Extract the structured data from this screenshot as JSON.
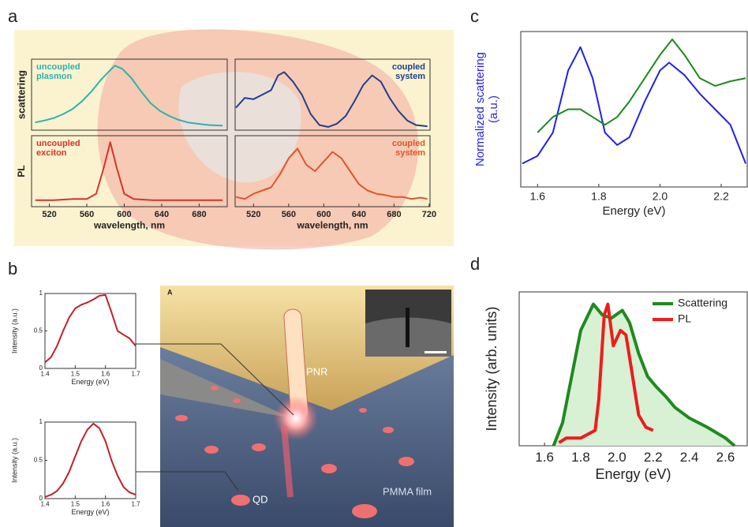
{
  "panel_labels": [
    "a",
    "b",
    "c",
    "d"
  ],
  "illustration": {
    "label": "A",
    "pnr": "PNR",
    "qd": "QD",
    "film": "PMMA film"
  },
  "chart_data": [
    {
      "type": "line",
      "ylabel": "scattering",
      "annotation": [
        "uncoupled",
        "plasmon"
      ],
      "xlim": [
        501,
        710
      ],
      "ylim": [
        0,
        1.1
      ],
      "series": [
        {
          "color": "#2ab3b0",
          "x": [
            505,
            515,
            525,
            535,
            545,
            555,
            565,
            575,
            585,
            590,
            598,
            608,
            618,
            628,
            638,
            648,
            658,
            668,
            678,
            690,
            705
          ],
          "values": [
            0.12,
            0.15,
            0.19,
            0.25,
            0.33,
            0.45,
            0.6,
            0.78,
            0.93,
            1.0,
            0.95,
            0.8,
            0.6,
            0.42,
            0.3,
            0.22,
            0.16,
            0.12,
            0.1,
            0.08,
            0.07
          ]
        }
      ]
    },
    {
      "type": "line",
      "annotation": [
        "coupled",
        "system"
      ],
      "xlim": [
        499,
        721
      ],
      "ylim": [
        0,
        1.1
      ],
      "series": [
        {
          "color": "#1f3f8f",
          "x": [
            500,
            510,
            520,
            530,
            540,
            548,
            555,
            565,
            575,
            585,
            595,
            605,
            615,
            625,
            635,
            645,
            655,
            665,
            675,
            685,
            695,
            705,
            718
          ],
          "values": [
            0.35,
            0.5,
            0.48,
            0.55,
            0.62,
            0.85,
            0.9,
            0.75,
            0.55,
            0.25,
            0.08,
            0.05,
            0.1,
            0.22,
            0.45,
            0.7,
            0.85,
            0.75,
            0.5,
            0.3,
            0.15,
            0.08,
            0.06
          ]
        }
      ]
    },
    {
      "type": "line",
      "ylabel": "PL",
      "annotation": [
        "uncoupled",
        "exciton"
      ],
      "xlabel": "wavelength, nm",
      "xlim": [
        501,
        710
      ],
      "ylim": [
        0,
        1.1
      ],
      "xticks": [
        520,
        560,
        600,
        640,
        680
      ],
      "series": [
        {
          "color": "#d7332b",
          "x": [
            505,
            525,
            545,
            560,
            570,
            578,
            585,
            592,
            600,
            610,
            630,
            660,
            690,
            705
          ],
          "values": [
            0.1,
            0.1,
            0.12,
            0.12,
            0.2,
            0.6,
            1.0,
            0.6,
            0.2,
            0.12,
            0.1,
            0.1,
            0.1,
            0.1
          ]
        }
      ]
    },
    {
      "type": "line",
      "annotation": [
        "coupled",
        "system"
      ],
      "xlabel": "wavelength, nm",
      "xlim": [
        499,
        721
      ],
      "ylim": [
        0,
        1.1
      ],
      "xticks": [
        520,
        560,
        600,
        640,
        680,
        720
      ],
      "series": [
        {
          "color": "#e0552a",
          "x": [
            500,
            510,
            520,
            530,
            540,
            550,
            560,
            570,
            580,
            590,
            600,
            610,
            620,
            630,
            640,
            650,
            660,
            670,
            680,
            690,
            700,
            710,
            718
          ],
          "values": [
            0.15,
            0.12,
            0.2,
            0.25,
            0.3,
            0.5,
            0.75,
            0.9,
            0.65,
            0.55,
            0.7,
            0.85,
            0.75,
            0.55,
            0.35,
            0.25,
            0.2,
            0.18,
            0.15,
            0.15,
            0.12,
            0.14,
            0.12
          ]
        }
      ]
    },
    {
      "type": "line",
      "ylabel": "Intensity (a.u.)",
      "xlabel": "Energy (eV)",
      "xlim": [
        1.4,
        1.7
      ],
      "ylim": [
        0,
        1
      ],
      "xticks": [
        1.4,
        1.5,
        1.6,
        1.7
      ],
      "yticks": [
        0,
        0.5,
        1
      ],
      "series": [
        {
          "color": "#c0202a",
          "x": [
            1.4,
            1.42,
            1.44,
            1.46,
            1.48,
            1.5,
            1.52,
            1.54,
            1.56,
            1.58,
            1.6,
            1.62,
            1.64,
            1.66,
            1.68,
            1.7
          ],
          "values": [
            0.08,
            0.15,
            0.3,
            0.5,
            0.68,
            0.8,
            0.85,
            0.88,
            0.92,
            0.97,
            0.98,
            0.75,
            0.5,
            0.45,
            0.4,
            0.3
          ]
        }
      ]
    },
    {
      "type": "line",
      "ylabel": "Intensity (a.u.)",
      "xlabel": "Energy (eV)",
      "xlim": [
        1.4,
        1.7
      ],
      "ylim": [
        0,
        1
      ],
      "xticks": [
        1.4,
        1.5,
        1.6,
        1.7
      ],
      "yticks": [
        0,
        0.5,
        1
      ],
      "series": [
        {
          "color": "#c0202a",
          "x": [
            1.4,
            1.42,
            1.44,
            1.46,
            1.48,
            1.5,
            1.52,
            1.54,
            1.56,
            1.58,
            1.6,
            1.62,
            1.64,
            1.66,
            1.68,
            1.7
          ],
          "values": [
            0.02,
            0.05,
            0.1,
            0.2,
            0.35,
            0.55,
            0.75,
            0.9,
            0.98,
            0.92,
            0.75,
            0.5,
            0.3,
            0.15,
            0.08,
            0.05
          ]
        }
      ]
    },
    {
      "type": "line",
      "ylabel": [
        "Normalized scattering",
        "(a.u.)"
      ],
      "ylabel_color": "#2222ee",
      "xlabel": "Energy (eV)",
      "xlim": [
        1.545,
        2.285
      ],
      "ylim": [
        0,
        1
      ],
      "xticks": [
        1.6,
        1.8,
        {
          "value": 2,
          "label": "2.0"
        },
        2.2
      ],
      "series": [
        {
          "color": "#2020ee",
          "x": [
            1.55,
            1.6,
            1.65,
            1.7,
            1.74,
            1.78,
            1.82,
            1.86,
            1.9,
            1.95,
            2.0,
            2.03,
            2.08,
            2.13,
            2.18,
            2.23,
            2.28
          ],
          "values": [
            0.15,
            0.2,
            0.35,
            0.75,
            0.9,
            0.7,
            0.35,
            0.27,
            0.32,
            0.55,
            0.75,
            0.8,
            0.72,
            0.6,
            0.5,
            0.4,
            0.15
          ]
        },
        {
          "color": "#1a8a1a",
          "x": [
            1.6,
            1.65,
            1.7,
            1.74,
            1.78,
            1.82,
            1.86,
            1.9,
            1.95,
            2.0,
            2.04,
            2.08,
            2.13,
            2.18,
            2.23,
            2.28
          ],
          "values": [
            0.35,
            0.45,
            0.5,
            0.5,
            0.45,
            0.4,
            0.45,
            0.55,
            0.7,
            0.85,
            0.95,
            0.85,
            0.7,
            0.65,
            0.68,
            0.7
          ]
        }
      ]
    },
    {
      "type": "line",
      "ylabel": "Intensity (arb. units)",
      "xlabel": "Energy (eV)",
      "xlim": [
        1.46,
        2.72
      ],
      "ylim": [
        0,
        1
      ],
      "legend": "upper right",
      "xticks": [
        1.6,
        1.8,
        {
          "value": 2,
          "label": "2.0"
        },
        2.2,
        2.4,
        2.6
      ],
      "series": [
        {
          "name": "Scattering",
          "color": "#1f8a1f",
          "fill": "#d8f0d4",
          "x": [
            1.65,
            1.7,
            1.75,
            1.8,
            1.87,
            1.92,
            1.97,
            2.03,
            2.07,
            2.12,
            2.17,
            2.22,
            2.27,
            2.32,
            2.4,
            2.5,
            2.6,
            2.65
          ],
          "values": [
            0,
            0.15,
            0.45,
            0.75,
            0.92,
            0.85,
            0.83,
            0.88,
            0.8,
            0.6,
            0.45,
            0.38,
            0.32,
            0.25,
            0.18,
            0.12,
            0.05,
            0
          ]
        },
        {
          "name": "PL",
          "color": "#ee1c1c",
          "x": [
            1.68,
            1.72,
            1.8,
            1.88,
            1.9,
            1.93,
            1.95,
            1.98,
            2.02,
            2.05,
            2.08,
            2.12,
            2.16,
            2.2
          ],
          "values": [
            0.02,
            0.05,
            0.05,
            0.1,
            0.3,
            0.85,
            0.92,
            0.65,
            0.75,
            0.72,
            0.5,
            0.2,
            0.12,
            0.1
          ]
        }
      ]
    }
  ]
}
